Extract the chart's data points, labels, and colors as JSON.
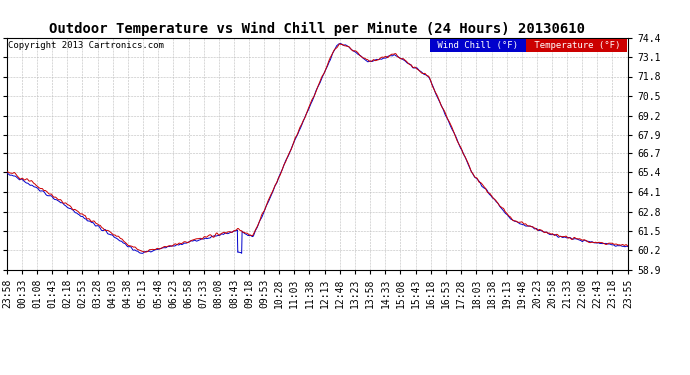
{
  "title": "Outdoor Temperature vs Wind Chill per Minute (24 Hours) 20130610",
  "copyright": "Copyright 2013 Cartronics.com",
  "y_min": 58.9,
  "y_max": 74.4,
  "y_ticks": [
    58.9,
    60.2,
    61.5,
    62.8,
    64.1,
    65.4,
    66.7,
    67.9,
    69.2,
    70.5,
    71.8,
    73.1,
    74.4
  ],
  "legend_wind_chill": "Wind Chill (°F)",
  "legend_temperature": "Temperature (°F)",
  "wind_chill_color": "#0000cc",
  "temperature_color": "#cc0000",
  "background_color": "#ffffff",
  "grid_color": "#bbbbbb",
  "title_fontsize": 10,
  "copyright_fontsize": 6.5,
  "tick_fontsize": 7,
  "x_tick_labels": [
    "23:58",
    "00:33",
    "01:08",
    "01:43",
    "02:18",
    "02:53",
    "03:28",
    "04:03",
    "04:38",
    "05:13",
    "05:48",
    "06:23",
    "06:58",
    "07:33",
    "08:08",
    "08:43",
    "09:18",
    "09:53",
    "10:28",
    "11:03",
    "11:38",
    "12:13",
    "12:48",
    "13:23",
    "13:58",
    "14:33",
    "15:08",
    "15:43",
    "16:18",
    "16:53",
    "17:28",
    "18:03",
    "18:38",
    "19:13",
    "19:48",
    "20:23",
    "20:58",
    "21:33",
    "22:08",
    "22:43",
    "23:18",
    "23:55"
  ]
}
